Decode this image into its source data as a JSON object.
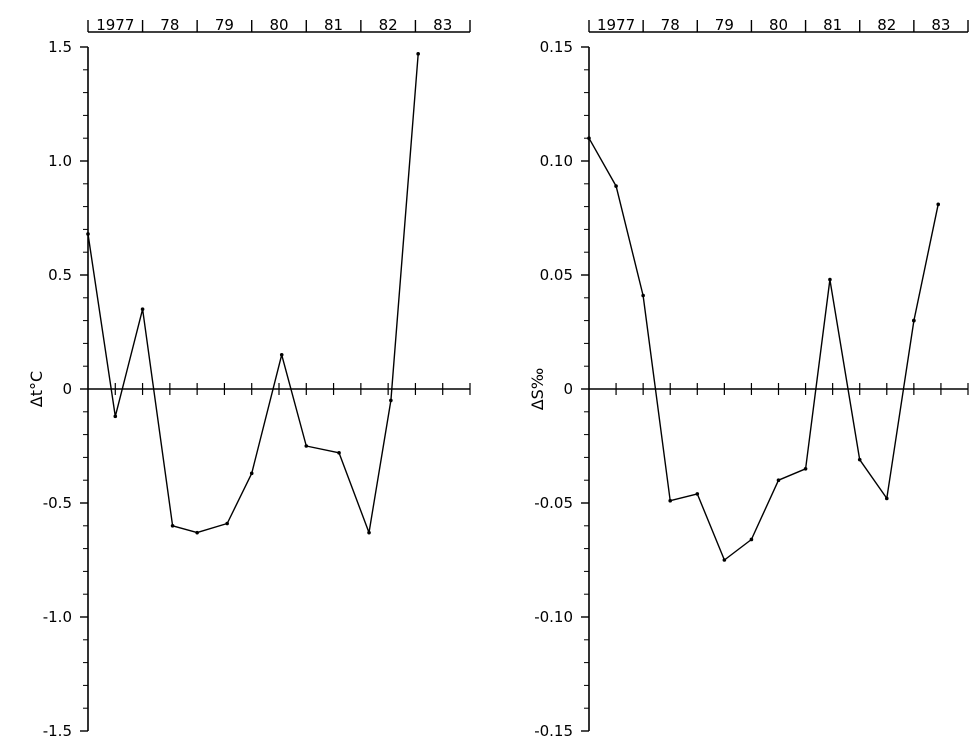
{
  "chart_data": [
    {
      "type": "line",
      "ylabel": "Δt°C",
      "ylim": [
        -1.5,
        1.5
      ],
      "ytick_labels": [
        "1.5",
        "1.0",
        "0.5",
        "0",
        "-0.5",
        "-1.0",
        "-1.5"
      ],
      "yticks": [
        1.5,
        1.0,
        0.5,
        0,
        -0.5,
        -1.0,
        -1.5
      ],
      "year_labels": [
        "1977",
        "78",
        "79",
        "80",
        "81",
        "82",
        "83"
      ],
      "xlim": [
        1977.0,
        1984.0
      ],
      "grid": false,
      "series": [
        {
          "x": [
            1977.0,
            1977.5,
            1978.0,
            1978.55,
            1979.0,
            1979.55,
            1980.0,
            1980.55,
            1981.0,
            1981.6,
            1982.15,
            1982.55,
            1983.05
          ],
          "values": [
            0.68,
            -0.12,
            0.35,
            -0.6,
            -0.63,
            -0.59,
            -0.37,
            0.15,
            -0.25,
            -0.28,
            -0.63,
            -0.05,
            1.47
          ]
        }
      ]
    },
    {
      "type": "line",
      "ylabel": "ΔS‰",
      "ylim": [
        -0.15,
        0.15
      ],
      "ytick_labels": [
        "0.15",
        "0.10",
        "0.05",
        "0",
        "-0.05",
        "-0.10",
        "-0.15"
      ],
      "yticks": [
        0.15,
        0.1,
        0.05,
        0,
        -0.05,
        -0.1,
        -0.15
      ],
      "year_labels": [
        "1977",
        "78",
        "79",
        "80",
        "81",
        "82",
        "83"
      ],
      "xlim": [
        1977.0,
        1984.0
      ],
      "grid": false,
      "series": [
        {
          "x": [
            1977.0,
            1977.5,
            1978.0,
            1978.5,
            1979.0,
            1979.5,
            1980.0,
            1980.5,
            1981.0,
            1981.45,
            1982.0,
            1982.5,
            1983.0
          ],
          "values": [
            0.11,
            0.089,
            0.041,
            -0.049,
            -0.046,
            -0.075,
            -0.066,
            -0.04,
            -0.035,
            0.048,
            -0.031,
            -0.048,
            0.03
          ]
        },
        {
          "x": [
            1983.0,
            1983.45
          ],
          "values": [
            0.03,
            0.081
          ]
        }
      ]
    }
  ]
}
